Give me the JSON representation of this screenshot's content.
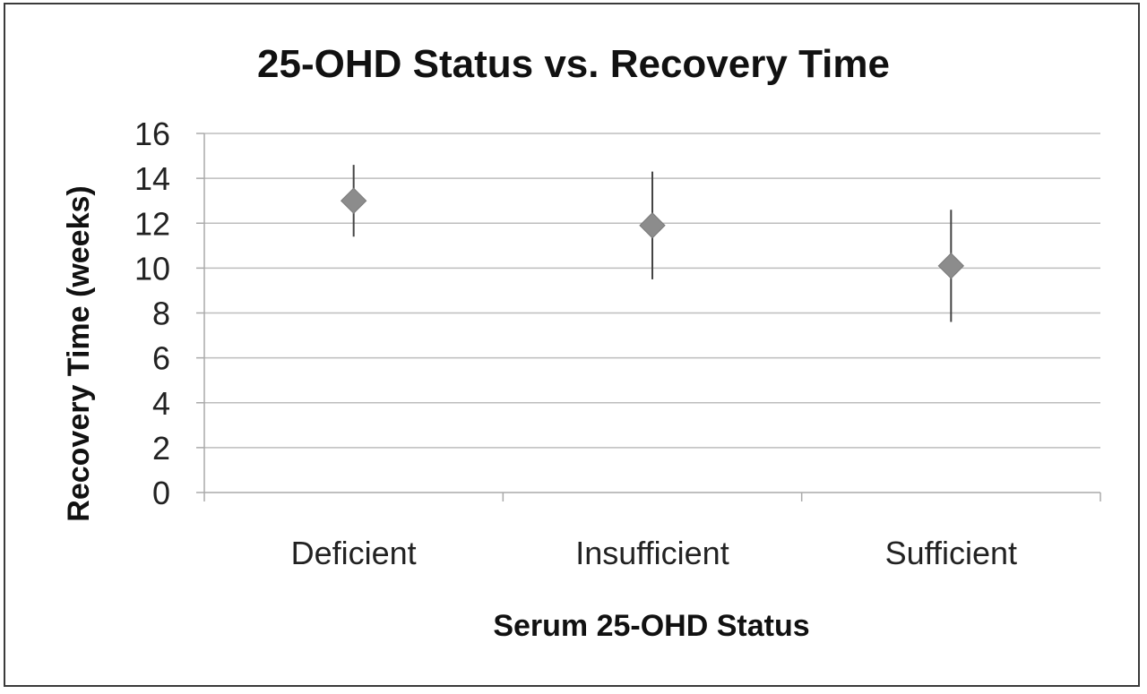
{
  "chart_data": {
    "type": "scatter",
    "title": "25-OHD Status vs. Recovery Time",
    "xlabel": "Serum 25-OHD Status",
    "ylabel": "Recovery Time (weeks)",
    "categories": [
      "Deficient",
      "Insufficient",
      "Sufficient"
    ],
    "series": [
      {
        "values": [
          13.0,
          11.9,
          10.1
        ],
        "error_low": [
          11.4,
          9.5,
          7.6
        ],
        "error_high": [
          14.6,
          14.3,
          12.6
        ]
      }
    ],
    "ylim": [
      0,
      16
    ],
    "yticks": [
      "0",
      "2",
      "4",
      "6",
      "8",
      "10",
      "12",
      "14",
      "16"
    ],
    "grid": true,
    "marker": "diamond",
    "colors": {
      "marker": "#8c8c8c",
      "error_bar": "#444444",
      "grid": "#bdbdbd",
      "axis": "#aaaaaa"
    }
  }
}
